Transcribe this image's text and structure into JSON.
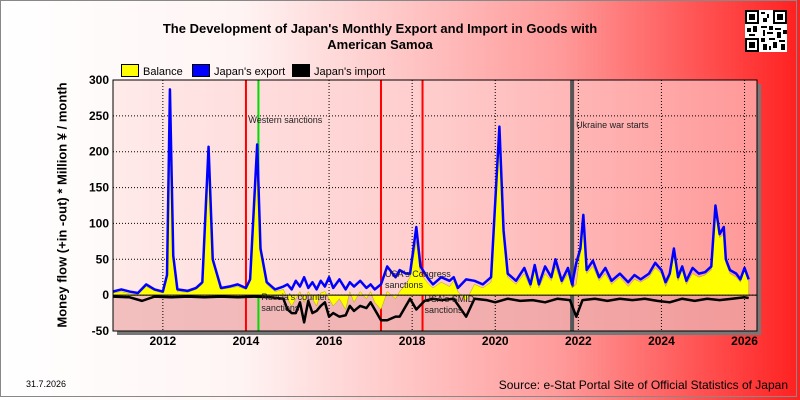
{
  "date_stamp": "31.7.2026",
  "source": "Source: e-Stat Portal Site of Official Statistics of Japan",
  "qr_icon": "qr-code-icon",
  "colors": {
    "balance": "#ffff00",
    "export": "#0000ff",
    "import": "#000000",
    "event_red": "#ff0000",
    "event_green": "#00dd00",
    "event_gray": "#555555"
  },
  "chart_data": {
    "type": "line",
    "title": "The Development of Japan's Monthly Export and Import in Goods with American Samoa",
    "ylabel": "Money flow (+in -out) * Million ¥ / month",
    "xlabel": "",
    "ylim": [
      -50,
      300
    ],
    "xlim": [
      2010.8,
      2026.3
    ],
    "yticks": [
      -50,
      0,
      50,
      100,
      150,
      200,
      250,
      300
    ],
    "xticks": [
      2012,
      2014,
      2016,
      2018,
      2020,
      2022,
      2024,
      2026
    ],
    "grid": true,
    "legend": "top-left",
    "series": [
      {
        "name": "Balance",
        "type": "area",
        "points": [
          [
            2010.8,
            3
          ],
          [
            2011.0,
            5
          ],
          [
            2011.2,
            2
          ],
          [
            2011.4,
            1
          ],
          [
            2011.6,
            12
          ],
          [
            2011.8,
            6
          ],
          [
            2012.0,
            3
          ],
          [
            2012.1,
            25
          ],
          [
            2012.17,
            285
          ],
          [
            2012.25,
            50
          ],
          [
            2012.35,
            5
          ],
          [
            2012.6,
            4
          ],
          [
            2012.8,
            8
          ],
          [
            2012.95,
            15
          ],
          [
            2013.1,
            205
          ],
          [
            2013.2,
            45
          ],
          [
            2013.4,
            8
          ],
          [
            2013.6,
            10
          ],
          [
            2013.8,
            12
          ],
          [
            2014.0,
            8
          ],
          [
            2014.1,
            20
          ],
          [
            2014.27,
            208
          ],
          [
            2014.35,
            60
          ],
          [
            2014.5,
            15
          ],
          [
            2014.7,
            5
          ],
          [
            2014.9,
            8
          ],
          [
            2015.0,
            -5
          ],
          [
            2015.1,
            -15
          ],
          [
            2015.2,
            -5
          ],
          [
            2015.3,
            5
          ],
          [
            2015.4,
            -10
          ],
          [
            2015.5,
            5
          ],
          [
            2015.6,
            -5
          ],
          [
            2015.7,
            -15
          ],
          [
            2015.8,
            3
          ],
          [
            2015.9,
            5
          ],
          [
            2016.0,
            -5
          ],
          [
            2016.1,
            -15
          ],
          [
            2016.25,
            -5
          ],
          [
            2016.4,
            -20
          ],
          [
            2016.5,
            5
          ],
          [
            2016.6,
            -10
          ],
          [
            2016.75,
            5
          ],
          [
            2016.9,
            -5
          ],
          [
            2017.0,
            5
          ],
          [
            2017.1,
            -10
          ],
          [
            2017.25,
            -20
          ],
          [
            2017.4,
            5
          ],
          [
            2017.6,
            -5
          ],
          [
            2017.7,
            5
          ],
          [
            2017.85,
            15
          ],
          [
            2017.95,
            25
          ],
          [
            2018.1,
            75
          ],
          [
            2018.2,
            30
          ],
          [
            2018.4,
            15
          ],
          [
            2018.5,
            10
          ],
          [
            2018.7,
            18
          ],
          [
            2018.9,
            12
          ],
          [
            2019.0,
            20
          ],
          [
            2019.1,
            5
          ],
          [
            2019.3,
            -8
          ],
          [
            2019.5,
            15
          ],
          [
            2019.7,
            10
          ],
          [
            2019.9,
            18
          ],
          [
            2020.1,
            225
          ],
          [
            2020.2,
            80
          ],
          [
            2020.3,
            25
          ],
          [
            2020.5,
            15
          ],
          [
            2020.7,
            30
          ],
          [
            2020.85,
            10
          ],
          [
            2020.95,
            35
          ],
          [
            2021.05,
            10
          ],
          [
            2021.2,
            30
          ],
          [
            2021.35,
            20
          ],
          [
            2021.45,
            40
          ],
          [
            2021.6,
            15
          ],
          [
            2021.75,
            30
          ],
          [
            2021.85,
            10
          ],
          [
            2021.95,
            15
          ],
          [
            2022.05,
            60
          ],
          [
            2022.12,
            105
          ],
          [
            2022.2,
            30
          ],
          [
            2022.35,
            40
          ],
          [
            2022.5,
            20
          ],
          [
            2022.65,
            30
          ],
          [
            2022.8,
            15
          ],
          [
            2022.9,
            20
          ],
          [
            2023.0,
            25
          ],
          [
            2023.2,
            12
          ],
          [
            2023.35,
            22
          ],
          [
            2023.5,
            18
          ],
          [
            2023.7,
            25
          ],
          [
            2023.85,
            38
          ],
          [
            2024.0,
            30
          ],
          [
            2024.1,
            12
          ],
          [
            2024.2,
            25
          ],
          [
            2024.3,
            55
          ],
          [
            2024.4,
            20
          ],
          [
            2024.5,
            35
          ],
          [
            2024.6,
            15
          ],
          [
            2024.75,
            30
          ],
          [
            2024.9,
            25
          ],
          [
            2025.05,
            28
          ],
          [
            2025.2,
            35
          ],
          [
            2025.3,
            118
          ],
          [
            2025.4,
            80
          ],
          [
            2025.5,
            85
          ],
          [
            2025.55,
            45
          ],
          [
            2025.65,
            30
          ],
          [
            2025.8,
            25
          ],
          [
            2025.9,
            18
          ],
          [
            2026.0,
            35
          ],
          [
            2026.1,
            18
          ]
        ]
      },
      {
        "name": "Japan's export",
        "type": "line",
        "points": [
          [
            2010.8,
            5
          ],
          [
            2011.0,
            8
          ],
          [
            2011.2,
            5
          ],
          [
            2011.4,
            3
          ],
          [
            2011.6,
            15
          ],
          [
            2011.8,
            8
          ],
          [
            2012.0,
            5
          ],
          [
            2012.1,
            28
          ],
          [
            2012.17,
            287
          ],
          [
            2012.25,
            55
          ],
          [
            2012.35,
            8
          ],
          [
            2012.6,
            6
          ],
          [
            2012.8,
            10
          ],
          [
            2012.95,
            18
          ],
          [
            2013.1,
            207
          ],
          [
            2013.2,
            50
          ],
          [
            2013.4,
            10
          ],
          [
            2013.6,
            12
          ],
          [
            2013.8,
            15
          ],
          [
            2014.0,
            10
          ],
          [
            2014.1,
            22
          ],
          [
            2014.27,
            210
          ],
          [
            2014.35,
            65
          ],
          [
            2014.5,
            18
          ],
          [
            2014.7,
            8
          ],
          [
            2014.9,
            12
          ],
          [
            2015.0,
            15
          ],
          [
            2015.1,
            8
          ],
          [
            2015.2,
            20
          ],
          [
            2015.3,
            12
          ],
          [
            2015.4,
            25
          ],
          [
            2015.5,
            10
          ],
          [
            2015.6,
            18
          ],
          [
            2015.7,
            8
          ],
          [
            2015.8,
            20
          ],
          [
            2015.9,
            12
          ],
          [
            2016.0,
            25
          ],
          [
            2016.1,
            10
          ],
          [
            2016.25,
            22
          ],
          [
            2016.4,
            8
          ],
          [
            2016.5,
            18
          ],
          [
            2016.6,
            12
          ],
          [
            2016.75,
            20
          ],
          [
            2016.9,
            10
          ],
          [
            2017.0,
            15
          ],
          [
            2017.1,
            8
          ],
          [
            2017.25,
            15
          ],
          [
            2017.4,
            40
          ],
          [
            2017.6,
            25
          ],
          [
            2017.7,
            35
          ],
          [
            2017.85,
            30
          ],
          [
            2017.95,
            30
          ],
          [
            2018.1,
            95
          ],
          [
            2018.2,
            40
          ],
          [
            2018.4,
            22
          ],
          [
            2018.5,
            15
          ],
          [
            2018.7,
            25
          ],
          [
            2018.9,
            20
          ],
          [
            2019.0,
            25
          ],
          [
            2019.1,
            10
          ],
          [
            2019.3,
            22
          ],
          [
            2019.5,
            20
          ],
          [
            2019.7,
            15
          ],
          [
            2019.9,
            25
          ],
          [
            2020.1,
            235
          ],
          [
            2020.2,
            90
          ],
          [
            2020.3,
            30
          ],
          [
            2020.5,
            20
          ],
          [
            2020.7,
            38
          ],
          [
            2020.85,
            15
          ],
          [
            2020.95,
            42
          ],
          [
            2021.05,
            15
          ],
          [
            2021.2,
            40
          ],
          [
            2021.35,
            25
          ],
          [
            2021.45,
            50
          ],
          [
            2021.6,
            20
          ],
          [
            2021.75,
            38
          ],
          [
            2021.85,
            15
          ],
          [
            2021.95,
            45
          ],
          [
            2022.05,
            65
          ],
          [
            2022.12,
            112
          ],
          [
            2022.2,
            35
          ],
          [
            2022.35,
            48
          ],
          [
            2022.5,
            25
          ],
          [
            2022.65,
            38
          ],
          [
            2022.8,
            20
          ],
          [
            2022.9,
            25
          ],
          [
            2023.0,
            30
          ],
          [
            2023.2,
            18
          ],
          [
            2023.35,
            28
          ],
          [
            2023.5,
            22
          ],
          [
            2023.7,
            30
          ],
          [
            2023.85,
            45
          ],
          [
            2024.0,
            35
          ],
          [
            2024.1,
            18
          ],
          [
            2024.2,
            30
          ],
          [
            2024.3,
            65
          ],
          [
            2024.4,
            25
          ],
          [
            2024.5,
            40
          ],
          [
            2024.6,
            20
          ],
          [
            2024.75,
            38
          ],
          [
            2024.9,
            30
          ],
          [
            2025.05,
            32
          ],
          [
            2025.2,
            40
          ],
          [
            2025.3,
            125
          ],
          [
            2025.4,
            85
          ],
          [
            2025.5,
            95
          ],
          [
            2025.55,
            50
          ],
          [
            2025.65,
            35
          ],
          [
            2025.8,
            30
          ],
          [
            2025.9,
            22
          ],
          [
            2026.0,
            38
          ],
          [
            2026.1,
            22
          ]
        ]
      },
      {
        "name": "Japan's import",
        "type": "line",
        "points": [
          [
            2010.8,
            -2
          ],
          [
            2011.2,
            -3
          ],
          [
            2011.5,
            -8
          ],
          [
            2011.8,
            -2
          ],
          [
            2012.2,
            -3
          ],
          [
            2012.6,
            -2
          ],
          [
            2013.0,
            -3
          ],
          [
            2013.4,
            -2
          ],
          [
            2013.8,
            -3
          ],
          [
            2014.2,
            -2
          ],
          [
            2014.6,
            -3
          ],
          [
            2014.9,
            -5
          ],
          [
            2015.0,
            -20
          ],
          [
            2015.1,
            -25
          ],
          [
            2015.2,
            -25
          ],
          [
            2015.3,
            -10
          ],
          [
            2015.4,
            -38
          ],
          [
            2015.5,
            -8
          ],
          [
            2015.6,
            -25
          ],
          [
            2015.7,
            -22
          ],
          [
            2015.8,
            -15
          ],
          [
            2015.9,
            -10
          ],
          [
            2016.0,
            -30
          ],
          [
            2016.1,
            -25
          ],
          [
            2016.25,
            -30
          ],
          [
            2016.4,
            -28
          ],
          [
            2016.5,
            -15
          ],
          [
            2016.6,
            -22
          ],
          [
            2016.75,
            -15
          ],
          [
            2016.9,
            -18
          ],
          [
            2017.0,
            -10
          ],
          [
            2017.1,
            -20
          ],
          [
            2017.25,
            -35
          ],
          [
            2017.4,
            -35
          ],
          [
            2017.6,
            -30
          ],
          [
            2017.7,
            -30
          ],
          [
            2017.85,
            -15
          ],
          [
            2017.95,
            -5
          ],
          [
            2018.1,
            -20
          ],
          [
            2018.3,
            -8
          ],
          [
            2018.5,
            -5
          ],
          [
            2018.7,
            -7
          ],
          [
            2019.0,
            -5
          ],
          [
            2019.3,
            -30
          ],
          [
            2019.5,
            -5
          ],
          [
            2019.8,
            -7
          ],
          [
            2020.0,
            -10
          ],
          [
            2020.3,
            -5
          ],
          [
            2020.6,
            -8
          ],
          [
            2020.9,
            -7
          ],
          [
            2021.2,
            -10
          ],
          [
            2021.5,
            -5
          ],
          [
            2021.8,
            -7
          ],
          [
            2021.95,
            -30
          ],
          [
            2022.1,
            -7
          ],
          [
            2022.4,
            -5
          ],
          [
            2022.7,
            -8
          ],
          [
            2023.0,
            -5
          ],
          [
            2023.3,
            -7
          ],
          [
            2023.6,
            -5
          ],
          [
            2023.9,
            -8
          ],
          [
            2024.2,
            -10
          ],
          [
            2024.5,
            -5
          ],
          [
            2024.8,
            -8
          ],
          [
            2025.1,
            -5
          ],
          [
            2025.4,
            -7
          ],
          [
            2025.7,
            -5
          ],
          [
            2026.0,
            -3
          ],
          [
            2026.1,
            -4
          ]
        ]
      }
    ],
    "events": [
      {
        "x": 2014.0,
        "color": "red",
        "label": ""
      },
      {
        "x": 2014.3,
        "color": "green",
        "label": "Western sanctions"
      },
      {
        "x": 2014.3,
        "color": "green",
        "label": "Russia's counter sanctions"
      },
      {
        "x": 2017.25,
        "color": "red",
        "label": "USA's Congress sanctions"
      },
      {
        "x": 2018.25,
        "color": "red",
        "label": "USA's SMID sanctions"
      },
      {
        "x": 2021.85,
        "color": "gray",
        "label": "Ukraine war starts"
      }
    ]
  }
}
